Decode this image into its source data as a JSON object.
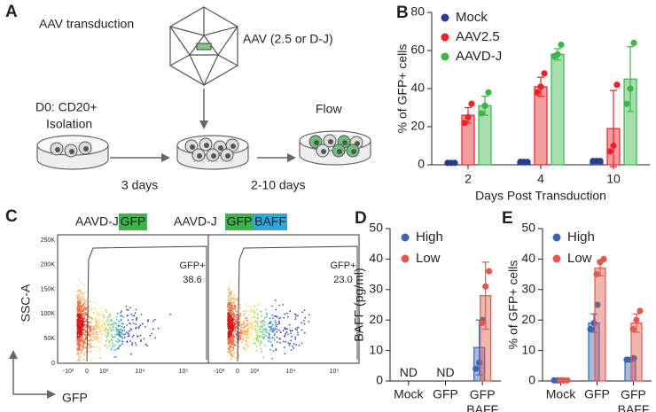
{
  "panel_a": {
    "letter": "A",
    "title": "AAV transduction",
    "virus_label": "AAV (2.5 or D-J)",
    "isolation_label": [
      "D0: CD20+",
      "Isolation"
    ],
    "flow_label": "Flow",
    "step1": "3 days",
    "step2": "2-10 days"
  },
  "panel_c": {
    "letter": "C",
    "plots": [
      {
        "title": "AAVD-J",
        "tags": [
          "GFP"
        ],
        "gate_label": "GFP+",
        "gate_value": "38.6"
      },
      {
        "title": "AAVD-J",
        "tags": [
          "GFP",
          "BAFF"
        ],
        "gate_label": "GFP+",
        "gate_value": "23.0"
      }
    ],
    "ylabel": "SSC-A",
    "xlabel": "GFP",
    "yticklabels": [
      "250K",
      "200K",
      "150K",
      "100K",
      "50K",
      "0"
    ],
    "xticklabels": [
      "-10³",
      "0",
      "10³",
      "10⁴",
      "10⁵"
    ]
  },
  "chart_data": [
    {
      "type": "bar",
      "panel": "B",
      "ylabel": "% of GFP+ cells",
      "xlabel": "Days Post Transduction",
      "categories": [
        "2",
        "4",
        "10"
      ],
      "ylim": [
        0,
        80
      ],
      "yticks": [
        0,
        20,
        40,
        60,
        80
      ],
      "legend": "upper left",
      "series": [
        {
          "name": "Mock",
          "color": "#2b3990",
          "values": [
            1,
            1.5,
            2
          ],
          "errors": [
            0.5,
            0.5,
            0.5
          ],
          "points": [
            [
              1,
              1,
              1
            ],
            [
              1.5,
              1.5,
              1.5
            ],
            [
              2,
              2,
              2
            ]
          ]
        },
        {
          "name": "AAV2.5",
          "color": "#e8232a",
          "values": [
            26,
            41,
            19
          ],
          "errors": [
            4,
            5,
            20
          ],
          "points": [
            [
              22,
              25,
              32
            ],
            [
              38,
              41,
              48
            ],
            [
              7,
              10,
              42
            ]
          ]
        },
        {
          "name": "AAVD-J",
          "color": "#3ab54a",
          "values": [
            31,
            58,
            45
          ],
          "errors": [
            5,
            3,
            17
          ],
          "points": [
            [
              27,
              31,
              38
            ],
            [
              57,
              58,
              63
            ],
            [
              32,
              40,
              64
            ]
          ]
        }
      ]
    },
    {
      "type": "bar",
      "panel": "D",
      "ylabel": "BAFF (pg/ml)",
      "categories": [
        "Mock",
        "GFP",
        "GFP BAFF"
      ],
      "ylim": [
        0,
        50
      ],
      "yticks": [
        0,
        10,
        20,
        30,
        40,
        50
      ],
      "legend": "upper left",
      "annotations": [
        "ND",
        "ND",
        null
      ],
      "series": [
        {
          "name": "High",
          "color": "#3a66b0",
          "values": [
            null,
            null,
            11
          ],
          "errors": [
            null,
            null,
            9
          ],
          "points": [
            null,
            null,
            [
              4,
              6,
              20
            ]
          ]
        },
        {
          "name": "Low",
          "color": "#e05a50",
          "values": [
            null,
            null,
            28
          ],
          "errors": [
            null,
            null,
            11
          ],
          "points": [
            null,
            null,
            [
              19,
              31,
              36
            ]
          ]
        }
      ]
    },
    {
      "type": "bar",
      "panel": "E",
      "ylabel": "% of GFP+ cells",
      "categories": [
        "Mock",
        "GFP",
        "GFP BAFF"
      ],
      "ylim": [
        0,
        50
      ],
      "yticks": [
        0,
        10,
        20,
        30,
        40,
        50
      ],
      "legend": "upper left",
      "series": [
        {
          "name": "High",
          "color": "#3a66b0",
          "values": [
            0.2,
            19,
            7
          ],
          "errors": [
            0.3,
            3,
            0.5
          ],
          "points": [
            [
              0.2,
              0.2,
              0.2
            ],
            [
              17,
              19,
              25
            ],
            [
              7,
              7,
              7.5
            ]
          ]
        },
        {
          "name": "Low",
          "color": "#e05a50",
          "values": [
            0.2,
            37,
            19
          ],
          "errors": [
            0.3,
            2.5,
            3
          ],
          "points": [
            [
              0.2,
              0.2,
              0.2
            ],
            [
              35,
              39,
              40
            ],
            [
              17,
              20,
              23
            ]
          ]
        }
      ]
    }
  ]
}
